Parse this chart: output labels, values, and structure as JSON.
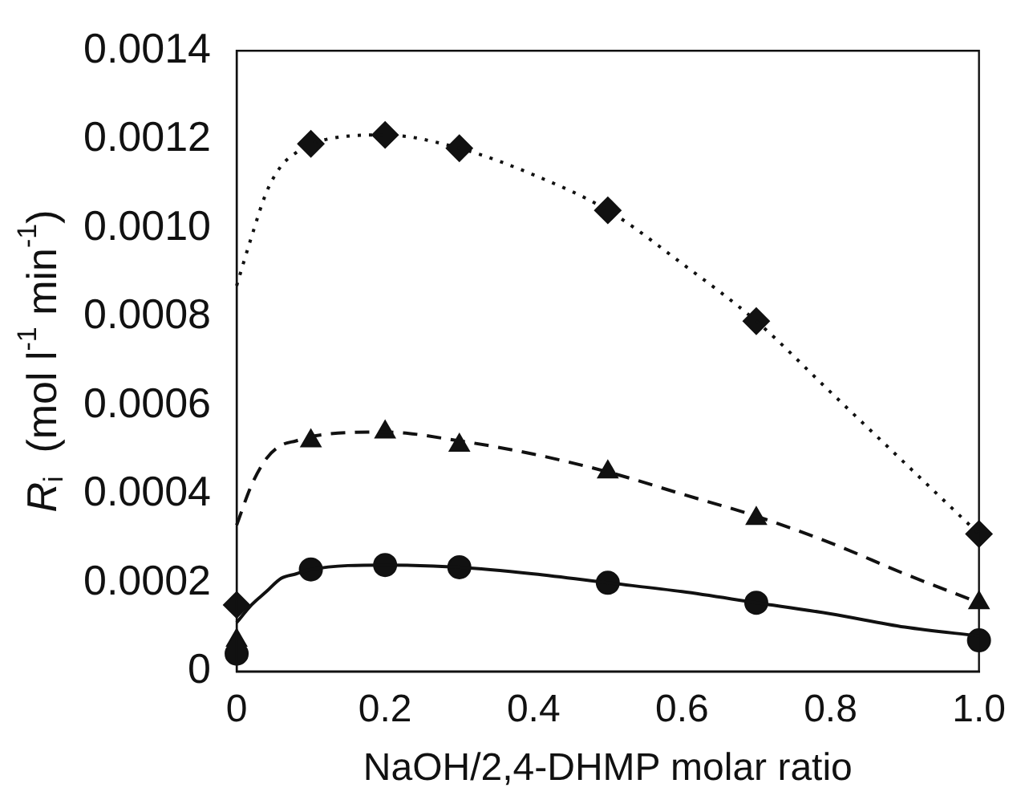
{
  "chart_data": {
    "type": "scatter",
    "xlabel": "NaOH/2,4-DHMP molar ratio",
    "ylabel": "R$_{i}$  (mol l$^{-1}$ min$^{-1}$)",
    "xlim": [
      0,
      1
    ],
    "ylim": [
      0,
      0.0014
    ],
    "xticks": [
      0,
      {
        "value": 0.2,
        "label": "0.2"
      },
      {
        "value": 0.4,
        "label": "0.4"
      },
      {
        "value": 0.6,
        "label": "0.6"
      },
      {
        "value": 0.8,
        "label": "0.8"
      },
      {
        "value": 1,
        "label": "1.0"
      }
    ],
    "yticks": [
      0,
      {
        "value": 0.0002,
        "label": "0.0002"
      },
      {
        "value": 0.0004,
        "label": "0.0004"
      },
      {
        "value": 0.0006,
        "label": "0.0006"
      },
      {
        "value": 0.0008,
        "label": "0.0008"
      },
      {
        "value": 0.001,
        "label": "0.0010"
      },
      {
        "value": 0.0012,
        "label": "0.0012"
      },
      {
        "value": 0.0014,
        "label": "0.0014"
      }
    ],
    "grid": false,
    "legend": false,
    "series": [
      {
        "type": "line",
        "color": "#111111",
        "marker": "none",
        "line_style": "dotted",
        "x": [
          0,
          0.02,
          0.04,
          0.06,
          0.08,
          0.1,
          0.2,
          0.3,
          0.4,
          0.5,
          0.6,
          0.7,
          0.8,
          0.9,
          1.0
        ],
        "values": [
          0.00087,
          0.00098,
          0.00108,
          0.00114,
          0.00117,
          0.00119,
          0.00121,
          0.00118,
          0.00112,
          0.00104,
          0.00092,
          0.00079,
          0.00063,
          0.00047,
          0.00031
        ]
      },
      {
        "type": "line",
        "color": "#111111",
        "marker": "none",
        "line_style": "dashed",
        "x": [
          0,
          0.02,
          0.04,
          0.06,
          0.08,
          0.1,
          0.2,
          0.3,
          0.4,
          0.5,
          0.6,
          0.7,
          0.8,
          0.9,
          1.0
        ],
        "values": [
          0.00033,
          0.00042,
          0.00048,
          0.00051,
          0.00052,
          0.00053,
          0.00054,
          0.00052,
          0.00049,
          0.00045,
          0.0004,
          0.00035,
          0.00029,
          0.00022,
          0.000155
        ]
      },
      {
        "type": "line",
        "color": "#111111",
        "marker": "none",
        "line_style": "solid",
        "x": [
          0,
          0.02,
          0.04,
          0.06,
          0.08,
          0.1,
          0.2,
          0.3,
          0.4,
          0.5,
          0.6,
          0.7,
          0.8,
          0.9,
          1.0
        ],
        "values": [
          0.00011,
          0.00015,
          0.00018,
          0.00021,
          0.00022,
          0.00023,
          0.00024,
          0.000235,
          0.00022,
          0.0002,
          0.00018,
          0.000155,
          0.00013,
          0.0001,
          8e-05
        ]
      },
      {
        "type": "scatter",
        "color": "#111111",
        "marker": "diamond",
        "x": [
          0,
          0.1,
          0.2,
          0.3,
          0.5,
          0.7,
          1.0
        ],
        "values": [
          0.00015,
          0.00119,
          0.00121,
          0.00118,
          0.00104,
          0.00079,
          0.00031
        ]
      },
      {
        "type": "scatter",
        "color": "#111111",
        "marker": "triangle",
        "x": [
          0,
          0.1,
          0.2,
          0.3,
          0.5,
          0.7,
          1.0
        ],
        "values": [
          7e-05,
          0.00052,
          0.00054,
          0.00051,
          0.00045,
          0.000345,
          0.000155
        ]
      },
      {
        "type": "scatter",
        "color": "#111111",
        "marker": "circle",
        "x": [
          0,
          0.1,
          0.2,
          0.3,
          0.5,
          0.7,
          1.0
        ],
        "values": [
          4e-05,
          0.00023,
          0.00024,
          0.000235,
          0.0002,
          0.000155,
          7e-05
        ]
      }
    ]
  }
}
